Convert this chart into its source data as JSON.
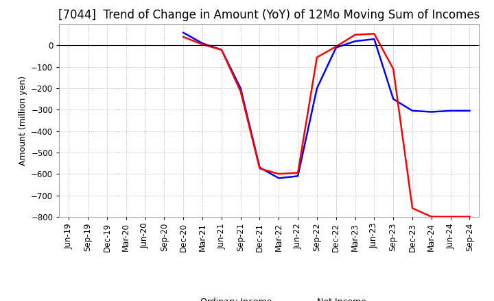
{
  "title": "[7044]  Trend of Change in Amount (YoY) of 12Mo Moving Sum of Incomes",
  "ylabel": "Amount (million yen)",
  "ylim": [
    -800,
    100
  ],
  "yticks": [
    0,
    -100,
    -200,
    -300,
    -400,
    -500,
    -600,
    -700,
    -800
  ],
  "x_labels": [
    "Jun-19",
    "Sep-19",
    "Dec-19",
    "Mar-20",
    "Jun-20",
    "Sep-20",
    "Dec-20",
    "Mar-21",
    "Jun-21",
    "Sep-21",
    "Dec-21",
    "Mar-22",
    "Jun-22",
    "Sep-22",
    "Dec-22",
    "Mar-23",
    "Jun-23",
    "Sep-23",
    "Dec-23",
    "Mar-24",
    "Jun-24",
    "Sep-24"
  ],
  "ordinary_income": [
    null,
    null,
    null,
    null,
    null,
    null,
    60,
    10,
    -20,
    -200,
    -570,
    -620,
    -610,
    -200,
    -10,
    20,
    30,
    -250,
    -305,
    -310,
    -305,
    -305
  ],
  "net_income": [
    null,
    null,
    null,
    null,
    null,
    null,
    40,
    5,
    -20,
    -215,
    -575,
    -600,
    -595,
    -55,
    -5,
    50,
    55,
    -110,
    -760,
    -800,
    -800,
    -800
  ],
  "ordinary_color": "#0000ff",
  "net_color": "#ff0000",
  "background_color": "#ffffff",
  "grid_color": "#b0b0b0",
  "title_fontsize": 12,
  "label_fontsize": 9,
  "tick_fontsize": 8.5
}
